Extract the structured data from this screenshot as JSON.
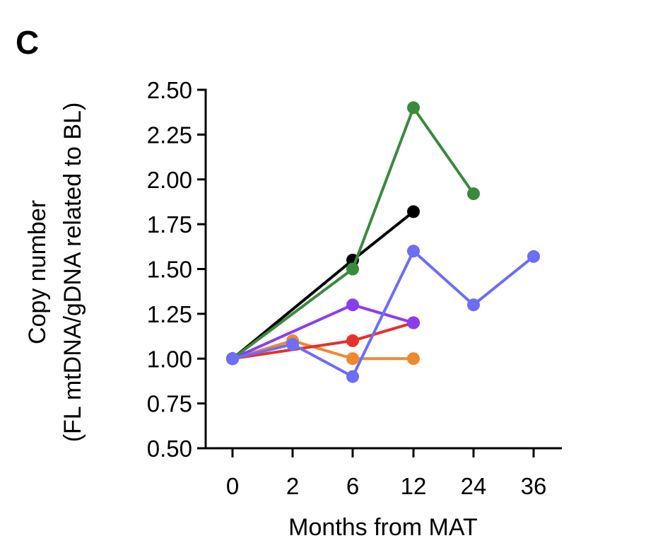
{
  "panel_label": "C",
  "chart_data": {
    "type": "line",
    "title": "",
    "xlabel": "Months from MAT",
    "ylabel_lines": [
      "Copy number",
      "(FL mtDNA/gDNA related to BL)"
    ],
    "categories": [
      "0",
      "2",
      "6",
      "12",
      "24",
      "36"
    ],
    "ylim": [
      0.5,
      2.5
    ],
    "yticks": [
      0.5,
      0.75,
      1.0,
      1.25,
      1.5,
      1.75,
      2.0,
      2.25,
      2.5
    ],
    "ytick_labels": [
      "0.50",
      "0.75",
      "1.00",
      "1.25",
      "1.50",
      "1.75",
      "2.00",
      "2.25",
      "2.50"
    ],
    "grid": false,
    "series": [
      {
        "name": "series-orange",
        "color": "#f0892e",
        "x": [
          "0",
          "2",
          "6",
          "12"
        ],
        "values": [
          1.0,
          1.1,
          1.0,
          1.0
        ]
      },
      {
        "name": "series-red",
        "color": "#e8302a",
        "x": [
          "0",
          "6",
          "12"
        ],
        "values": [
          1.0,
          1.1,
          1.2
        ]
      },
      {
        "name": "series-purple",
        "color": "#8a3df0",
        "x": [
          "0",
          "6",
          "12"
        ],
        "values": [
          1.0,
          1.3,
          1.2
        ]
      },
      {
        "name": "series-black",
        "color": "#000000",
        "x": [
          "0",
          "6",
          "12"
        ],
        "values": [
          1.0,
          1.55,
          1.82
        ]
      },
      {
        "name": "series-green",
        "color": "#3a8a3e",
        "x": [
          "0",
          "6",
          "12",
          "24"
        ],
        "values": [
          1.0,
          1.5,
          2.4,
          1.92
        ]
      },
      {
        "name": "series-blue",
        "color": "#6b6ef7",
        "x": [
          "0",
          "2",
          "6",
          "12",
          "24",
          "36"
        ],
        "values": [
          1.0,
          1.08,
          0.9,
          1.6,
          1.3,
          1.57
        ]
      }
    ]
  }
}
